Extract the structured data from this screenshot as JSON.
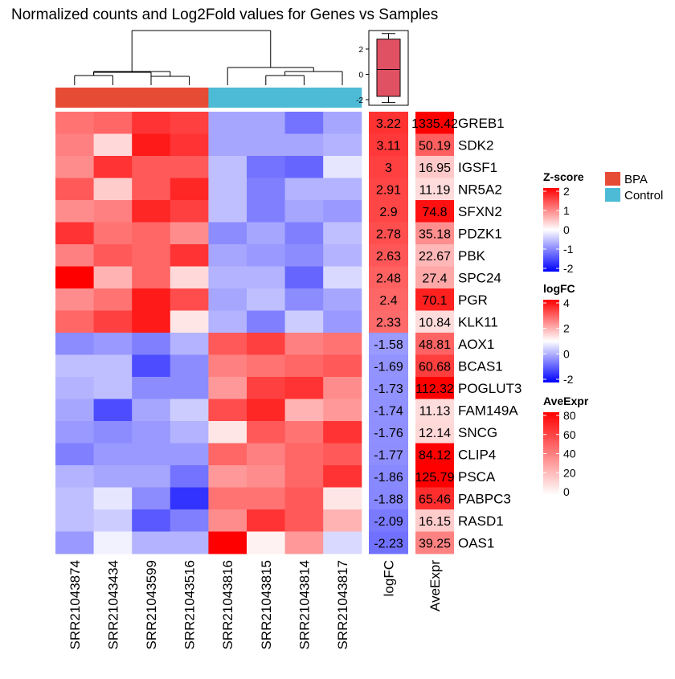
{
  "chart_data": {
    "type": "heatmap",
    "title": "Normalized counts and Log2Fold values for Genes vs Samples",
    "samples": [
      "SRR21043874",
      "SRR21043434",
      "SRR21043599",
      "SRR21043516",
      "SRR21043816",
      "SRR21043815",
      "SRR21043814",
      "SRR21043817"
    ],
    "sample_groups": [
      "BPA",
      "BPA",
      "BPA",
      "BPA",
      "Control",
      "Control",
      "Control",
      "Control"
    ],
    "genes": [
      "GREB1",
      "SDK2",
      "IGSF1",
      "NR5A2",
      "SFXN2",
      "PDZK1",
      "PBK",
      "SPC24",
      "PGR",
      "KLK11",
      "AOX1",
      "BCAS1",
      "POGLUT3",
      "FAM149A",
      "SNCG",
      "CLIP4",
      "PSCA",
      "PABPC3",
      "RASD1",
      "OAS1"
    ],
    "zscores": [
      [
        1.1,
        1.2,
        1.6,
        1.5,
        -0.7,
        -0.7,
        -1.1,
        -0.7
      ],
      [
        1.0,
        0.3,
        1.8,
        1.6,
        -0.7,
        -0.7,
        -0.7,
        -0.6
      ],
      [
        0.9,
        1.6,
        1.3,
        1.3,
        -0.5,
        -1.1,
        -1.2,
        -0.2
      ],
      [
        1.3,
        0.4,
        1.3,
        1.7,
        -0.5,
        -1.0,
        -0.6,
        -0.6
      ],
      [
        0.9,
        1.0,
        1.7,
        1.5,
        -0.5,
        -1.0,
        -0.7,
        -0.8
      ],
      [
        1.6,
        1.1,
        1.2,
        0.9,
        -0.9,
        -0.7,
        -1.0,
        -0.5
      ],
      [
        1.0,
        1.3,
        1.2,
        1.6,
        -0.7,
        -0.8,
        -0.9,
        -0.6
      ],
      [
        2.5,
        0.6,
        1.2,
        0.3,
        -0.6,
        -0.6,
        -1.2,
        -0.3
      ],
      [
        0.9,
        1.1,
        1.8,
        1.4,
        -0.7,
        -0.5,
        -0.9,
        -0.7
      ],
      [
        1.2,
        1.5,
        1.8,
        0.2,
        -0.6,
        -1.0,
        -0.4,
        -0.8
      ],
      [
        -0.9,
        -0.8,
        -1.0,
        -0.6,
        1.3,
        1.5,
        1.0,
        1.1
      ],
      [
        -0.5,
        -0.5,
        -1.4,
        -0.9,
        1.0,
        1.1,
        1.2,
        1.3
      ],
      [
        -0.6,
        -0.5,
        -0.9,
        -0.9,
        0.8,
        1.5,
        1.6,
        0.9
      ],
      [
        -0.7,
        -1.4,
        -0.7,
        -0.4,
        1.4,
        1.7,
        0.6,
        0.8
      ],
      [
        -0.8,
        -0.9,
        -0.8,
        -0.6,
        0.2,
        1.3,
        1.1,
        1.6
      ],
      [
        -1.0,
        -0.8,
        -0.8,
        -0.8,
        1.2,
        1.0,
        1.2,
        1.3
      ],
      [
        -0.6,
        -0.7,
        -0.7,
        -1.1,
        0.8,
        0.9,
        1.2,
        1.6
      ],
      [
        -0.5,
        -0.2,
        -0.9,
        -1.6,
        1.1,
        1.1,
        1.3,
        0.2
      ],
      [
        -0.5,
        -0.4,
        -1.3,
        -1.0,
        0.9,
        1.6,
        1.3,
        0.6
      ],
      [
        -0.8,
        -0.1,
        -0.6,
        -0.6,
        2.3,
        0.1,
        0.8,
        -0.3
      ]
    ],
    "logFC": [
      "3.22",
      "3.11",
      "3",
      "2.91",
      "2.9",
      "2.78",
      "2.63",
      "2.48",
      "2.4",
      "2.33",
      "-1.58",
      "-1.69",
      "-1.73",
      "-1.74",
      "-1.76",
      "-1.77",
      "-1.86",
      "-1.88",
      "-2.09",
      "-2.23"
    ],
    "aveExpr": [
      "1335.42",
      "50.19",
      "16.95",
      "11.19",
      "74.8",
      "35.18",
      "22.67",
      "27.4",
      "70.1",
      "10.84",
      "48.81",
      "60.68",
      "112.32",
      "11.13",
      "12.14",
      "84.12",
      "125.79",
      "65.46",
      "16.15",
      "39.25"
    ],
    "annotation_columns": [
      "logFC",
      "AveExpr"
    ],
    "boxplot": {
      "min": -2.23,
      "q1": -1.74,
      "median": 0.38,
      "q3": 2.78,
      "max": 3.22,
      "ticks": [
        "2",
        "0",
        "-2"
      ],
      "fill": "#e05263"
    },
    "legends": {
      "zscore": {
        "title": "Z-score",
        "ticks": [
          "2",
          "1",
          "0",
          "-1",
          "-2"
        ],
        "colors": {
          "low": "#0000ff",
          "mid": "#ffffff",
          "high": "#ff0000"
        }
      },
      "logfc": {
        "title": "logFC",
        "ticks": [
          "4",
          "2",
          "0",
          "-2"
        ],
        "colors": {
          "low": "#0000ff",
          "mid": "#ffffff",
          "high": "#ff0000"
        }
      },
      "aveexpr": {
        "title": "AveExpr",
        "ticks": [
          "80",
          "60",
          "40",
          "20",
          "0"
        ],
        "colors": {
          "low": "#ffffff",
          "high": "#ff0000"
        }
      },
      "groups": [
        {
          "name": "BPA",
          "color": "#e64b35"
        },
        {
          "name": "Control",
          "color": "#4dbbd5"
        }
      ]
    }
  }
}
